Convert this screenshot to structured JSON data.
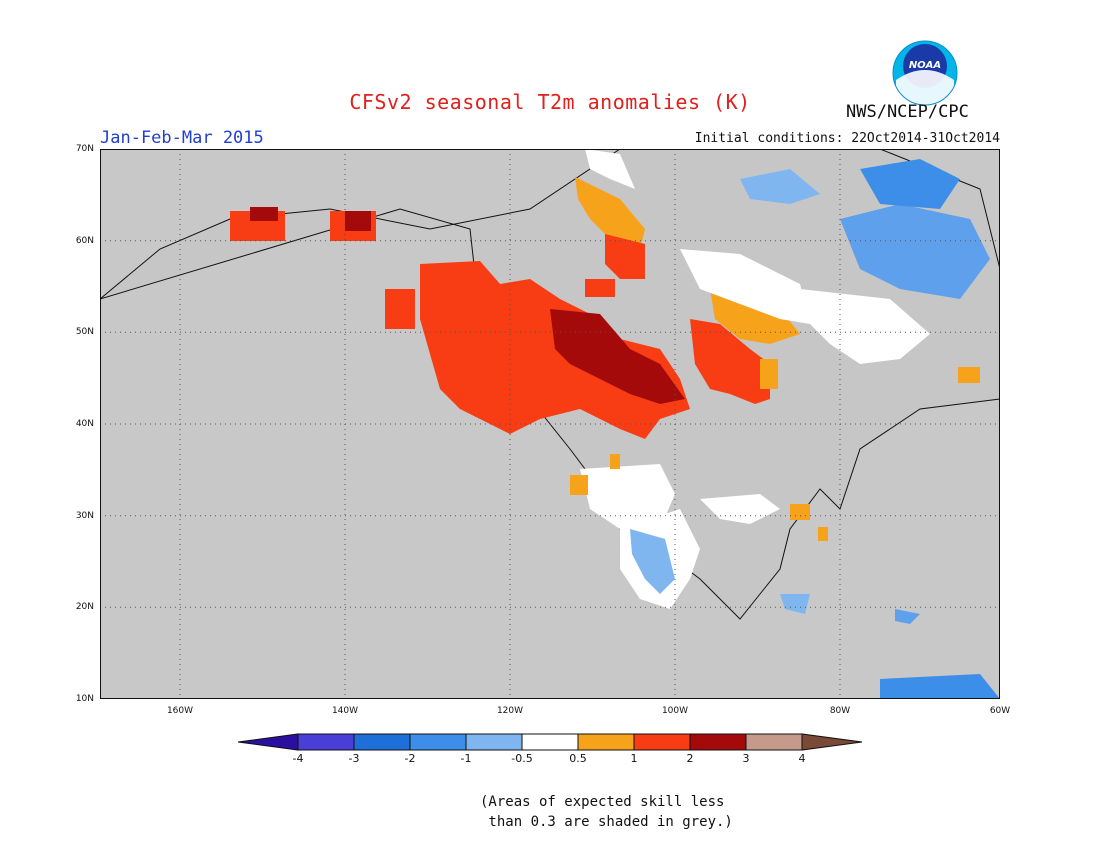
{
  "title": "CFSv2 seasonal T2m anomalies (K)",
  "agency": "NWS/NCEP/CPC",
  "logo_text": "NOAA",
  "period": "Jan-Feb-Mar 2015",
  "initial_conditions": "Initial conditions: 22Oct2014-31Oct2014",
  "map": {
    "lat_labels": [
      "70N",
      "60N",
      "50N",
      "40N",
      "30N",
      "20N",
      "10N"
    ],
    "lon_labels": [
      "160W",
      "140W",
      "120W",
      "100W",
      "80W",
      "60W"
    ],
    "land_color": "#c8c8c8"
  },
  "colorbar": {
    "labels": [
      "-4",
      "-3",
      "-2",
      "-1",
      "-0.5",
      "0.5",
      "1",
      "2",
      "3",
      "4"
    ],
    "colors": [
      "#2a0fa0",
      "#4a3ed8",
      "#1e6fd8",
      "#3d8ee8",
      "#7fb6f0",
      "#ffffff",
      "#f7a21b",
      "#f83c14",
      "#a50a0a",
      "#c69a8a",
      "#7a4a38"
    ]
  },
  "note": "(Areas of expected skill less\n than 0.3 are shaded in grey.)"
}
